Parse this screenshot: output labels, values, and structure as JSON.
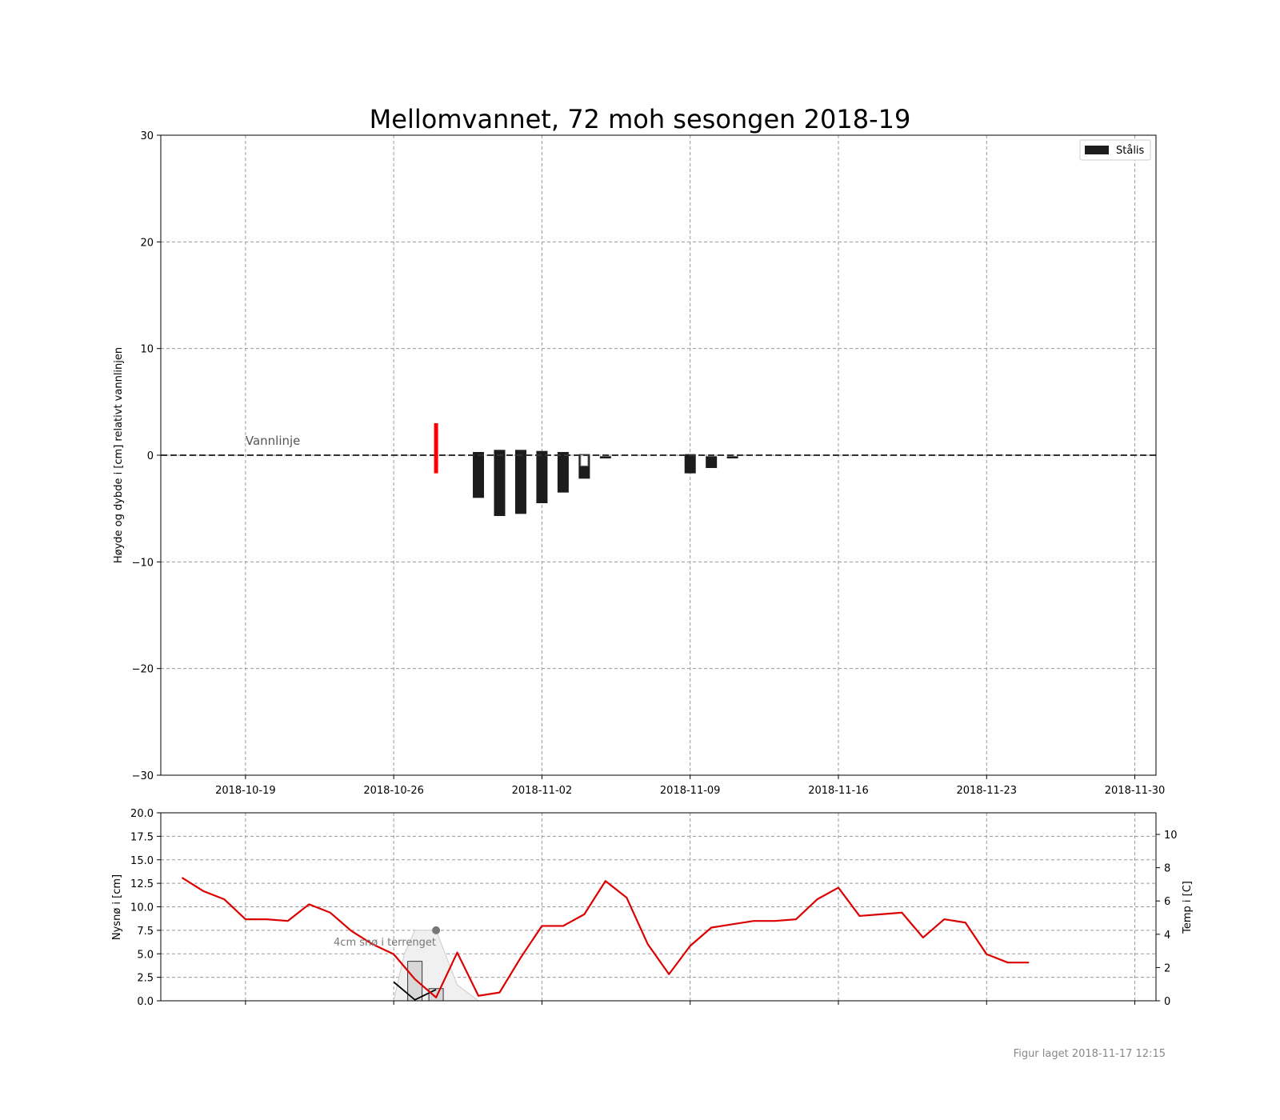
{
  "chart_data": [
    {
      "type": "bar",
      "title": "Mellomvannet, 72 moh sesongen 2018-19",
      "ylabel": "Høyde og dybde i [cm] relativt vannlinjen",
      "ylim": [
        -30,
        30
      ],
      "yticks": [
        "30",
        "20",
        "10",
        "0",
        "−10",
        "−20",
        "−30"
      ],
      "xlim": [
        "2018-10-15",
        "2018-12-01"
      ],
      "xticks": [
        "2018-10-19",
        "2018-10-26",
        "2018-11-02",
        "2018-11-09",
        "2018-11-16",
        "2018-11-23",
        "2018-11-30"
      ],
      "grid": true,
      "legend": {
        "placement": "top-right",
        "entries": [
          {
            "name": "Stålis",
            "color": "#1c1c1c"
          }
        ]
      },
      "waterline": {
        "y": 0,
        "label": "Vannlinje"
      },
      "red_marker": {
        "x": "2018-10-28",
        "y_top": 3.0,
        "y_bottom": -1.7,
        "color": "#ff0000"
      },
      "series": [
        {
          "name": "Stålis",
          "color": "#1c1c1c",
          "bars": [
            {
              "x": "2018-10-30",
              "top": 0.3,
              "bottom": -4.0
            },
            {
              "x": "2018-10-31",
              "top": 0.5,
              "bottom": -5.7
            },
            {
              "x": "2018-11-01",
              "top": 0.5,
              "bottom": -5.5
            },
            {
              "x": "2018-11-02",
              "top": 0.4,
              "bottom": -4.5
            },
            {
              "x": "2018-11-03",
              "top": 0.3,
              "bottom": -3.5
            },
            {
              "x": "2018-11-04",
              "top": 0.1,
              "bottom": -2.2
            },
            {
              "x": "2018-11-05",
              "top": -0.1,
              "bottom": -0.3
            },
            {
              "x": "2018-11-09",
              "top": 0.1,
              "bottom": -1.7
            },
            {
              "x": "2018-11-10",
              "top": -0.1,
              "bottom": -1.2
            },
            {
              "x": "2018-11-11",
              "top": -0.1,
              "bottom": -0.3
            }
          ]
        }
      ],
      "hollow_bar": {
        "x": "2018-11-04",
        "top": 0.0,
        "bottom": -1.0
      }
    },
    {
      "type": "line",
      "ylabel": "Nysnø i [cm]",
      "ylabel_right": "Temp i [C]",
      "ylim": [
        0,
        20
      ],
      "yticks": [
        "0.0",
        "2.5",
        "5.0",
        "7.5",
        "10.0",
        "12.5",
        "15.0",
        "17.5",
        "20.0"
      ],
      "ylim_right": [
        0,
        11.3
      ],
      "yticks_right": [
        "0",
        "2",
        "4",
        "6",
        "8",
        "10"
      ],
      "xlim": [
        "2018-10-15",
        "2018-12-01"
      ],
      "grid": true,
      "annotation": {
        "text": "4cm snø i terrenget",
        "x": "2018-10-28",
        "y": 7.5
      },
      "snow_bars": [
        {
          "x": "2018-10-27",
          "value": 4.2
        },
        {
          "x": "2018-10-28",
          "value": 1.3
        }
      ],
      "snow_area": {
        "x": [
          "2018-10-26",
          "2018-10-26.5",
          "2018-10-27",
          "2018-10-28",
          "2018-10-29",
          "2018-10-30"
        ],
        "y": [
          0,
          5.0,
          7.5,
          7.5,
          1.7,
          0
        ]
      },
      "black_line": {
        "x": [
          "2018-10-26",
          "2018-10-27",
          "2018-10-28"
        ],
        "y": [
          2.0,
          0.1,
          1.2
        ]
      },
      "temperature": {
        "color": "#dd0000",
        "x": [
          "2018-10-16",
          "2018-10-17",
          "2018-10-18",
          "2018-10-19",
          "2018-10-20",
          "2018-10-21",
          "2018-10-22",
          "2018-10-23",
          "2018-10-24",
          "2018-10-25",
          "2018-10-26",
          "2018-10-27",
          "2018-10-28",
          "2018-10-29",
          "2018-10-30",
          "2018-10-31",
          "2018-11-01",
          "2018-11-02",
          "2018-11-03",
          "2018-11-04",
          "2018-11-05",
          "2018-11-06",
          "2018-11-07",
          "2018-11-08",
          "2018-11-09",
          "2018-11-10",
          "2018-11-11",
          "2018-11-12",
          "2018-11-13",
          "2018-11-14",
          "2018-11-15",
          "2018-11-16",
          "2018-11-17",
          "2018-11-18",
          "2018-11-19",
          "2018-11-20",
          "2018-11-21",
          "2018-11-22",
          "2018-11-23",
          "2018-11-24",
          "2018-11-25"
        ],
        "y": [
          7.4,
          6.6,
          6.1,
          4.9,
          4.9,
          4.8,
          5.8,
          5.3,
          4.2,
          3.4,
          2.8,
          1.3,
          0.2,
          2.9,
          0.3,
          0.5,
          2.6,
          4.5,
          4.5,
          5.2,
          7.2,
          6.2,
          3.4,
          1.6,
          3.3,
          4.4,
          4.6,
          4.8,
          4.8,
          4.9,
          6.1,
          6.8,
          5.1,
          5.2,
          5.3,
          3.8,
          4.9,
          4.7,
          2.8,
          2.3,
          2.3
        ]
      }
    }
  ],
  "footer": "Figur laget 2018-11-17 12:15"
}
